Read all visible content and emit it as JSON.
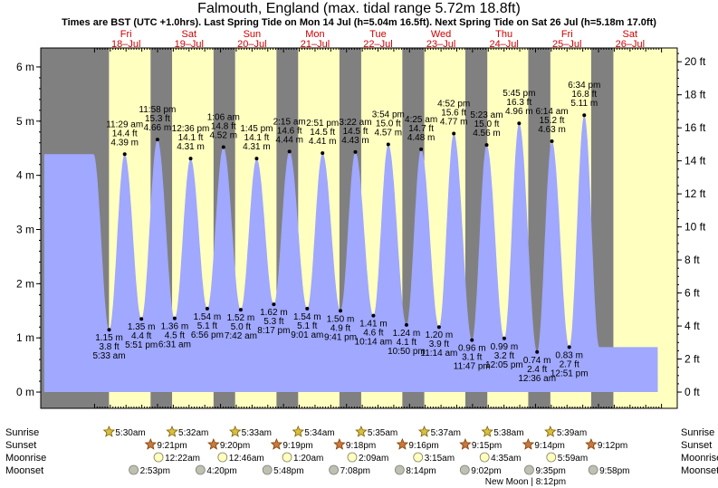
{
  "title": "Falmouth, England (max. tidal range 5.72m 18.8ft)",
  "subtitle": "Times are BST (UTC +1.0hrs). Last Spring Tide on Mon 14 Jul (h=5.04m 16.5ft). Next Spring Tide on Sat 26 Jul (h=5.18m 17.0ft)",
  "colors": {
    "day": "#ffffc0",
    "night": "#808080",
    "tide": "#a0a8ff",
    "day_label": "#d00000"
  },
  "chart_data": {
    "type": "area",
    "title": "Falmouth, England (max. tidal range 5.72m 18.8ft)",
    "xlabel": "",
    "ylabel_left": "m",
    "ylabel_right": "ft",
    "x_unit": "hours since 00:00 Fri 18 Jul",
    "ylim": [
      -0.3,
      6.35
    ],
    "y_ticks_m": [
      0,
      1,
      2,
      3,
      4,
      5,
      6
    ],
    "y_tick_labels_m": [
      "0 m",
      "1 m",
      "2 m",
      "3 m",
      "4 m",
      "5 m",
      "6 m"
    ],
    "y_ticks_ft": [
      0,
      2,
      4,
      6,
      8,
      10,
      12,
      14,
      16,
      18,
      20
    ],
    "y_tick_labels_ft": [
      "0 ft",
      "2 ft",
      "4 ft",
      "6 ft",
      "8 ft",
      "10 ft",
      "12 ft",
      "14 ft",
      "16 ft",
      "18 ft",
      "20 ft"
    ],
    "days": [
      {
        "dow": "Fri",
        "date": "18–Jul"
      },
      {
        "dow": "Sat",
        "date": "19–Jul"
      },
      {
        "dow": "Sun",
        "date": "20–Jul"
      },
      {
        "dow": "Mon",
        "date": "21–Jul"
      },
      {
        "dow": "Tue",
        "date": "22–Jul"
      },
      {
        "dow": "Wed",
        "date": "23–Jul"
      },
      {
        "dow": "Thu",
        "date": "24–Jul"
      },
      {
        "dow": "Fri",
        "date": "25–Jul"
      },
      {
        "dow": "Sat",
        "date": "26–Jul"
      }
    ],
    "daylight": [
      {
        "day": 0,
        "sunrise": "5:30am",
        "sunset": "9:21pm"
      },
      {
        "day": 1,
        "sunrise": "5:32am",
        "sunset": "9:20pm"
      },
      {
        "day": 2,
        "sunrise": "5:33am",
        "sunset": "9:19pm"
      },
      {
        "day": 3,
        "sunrise": "5:34am",
        "sunset": "9:18pm"
      },
      {
        "day": 4,
        "sunrise": "5:35am",
        "sunset": "9:16pm"
      },
      {
        "day": 5,
        "sunrise": "5:37am",
        "sunset": "9:15pm"
      },
      {
        "day": 6,
        "sunrise": "5:38am",
        "sunset": "9:14pm"
      },
      {
        "day": 7,
        "sunrise": "5:39am",
        "sunset": "9:12pm"
      },
      {
        "day": 8,
        "sunrise": "",
        "sunset": ""
      }
    ],
    "tides": [
      {
        "day": 0,
        "time": "5:33 am",
        "m": "1.15 m",
        "ft": "3.8 ft",
        "height": 1.15,
        "type": "low"
      },
      {
        "day": 0,
        "time": "11:29 am",
        "m": "4.39 m",
        "ft": "14.4 ft",
        "height": 4.39,
        "type": "high"
      },
      {
        "day": 0,
        "time": "5:51 pm",
        "m": "1.35 m",
        "ft": "4.4 ft",
        "height": 1.35,
        "type": "low"
      },
      {
        "day": 0,
        "time": "11:58 pm",
        "m": "4.66 m",
        "ft": "15.3 ft",
        "height": 4.66,
        "type": "high"
      },
      {
        "day": 1,
        "time": "6:31 am",
        "m": "1.36 m",
        "ft": "4.5 ft",
        "height": 1.36,
        "type": "low"
      },
      {
        "day": 1,
        "time": "12:36 pm",
        "m": "4.31 m",
        "ft": "14.1 ft",
        "height": 4.31,
        "type": "high"
      },
      {
        "day": 1,
        "time": "6:56 pm",
        "m": "1.54 m",
        "ft": "5.1 ft",
        "height": 1.54,
        "type": "low"
      },
      {
        "day": 2,
        "time": "1:06 am",
        "m": "4.52 m",
        "ft": "14.8 ft",
        "height": 4.52,
        "type": "high"
      },
      {
        "day": 2,
        "time": "7:42 am",
        "m": "1.52 m",
        "ft": "5.0 ft",
        "height": 1.52,
        "type": "low"
      },
      {
        "day": 2,
        "time": "1:45 pm",
        "m": "4.31 m",
        "ft": "14.1 ft",
        "height": 4.31,
        "type": "high"
      },
      {
        "day": 2,
        "time": "8:17 pm",
        "m": "1.62 m",
        "ft": "5.3 ft",
        "height": 1.62,
        "type": "low"
      },
      {
        "day": 3,
        "time": "2:15 am",
        "m": "4.44 m",
        "ft": "14.6 ft",
        "height": 4.44,
        "type": "high"
      },
      {
        "day": 3,
        "time": "9:01 am",
        "m": "1.54 m",
        "ft": "5.1 ft",
        "height": 1.54,
        "type": "low"
      },
      {
        "day": 3,
        "time": "2:51 pm",
        "m": "4.41 m",
        "ft": "14.5 ft",
        "height": 4.41,
        "type": "high"
      },
      {
        "day": 3,
        "time": "9:41 pm",
        "m": "1.50 m",
        "ft": "4.9 ft",
        "height": 1.5,
        "type": "low"
      },
      {
        "day": 4,
        "time": "3:22 am",
        "m": "4.43 m",
        "ft": "14.5 ft",
        "height": 4.43,
        "type": "high"
      },
      {
        "day": 4,
        "time": "10:14 am",
        "m": "1.41 m",
        "ft": "4.6 ft",
        "height": 1.41,
        "type": "low"
      },
      {
        "day": 4,
        "time": "3:54 pm",
        "m": "4.57 m",
        "ft": "15.0 ft",
        "height": 4.57,
        "type": "high"
      },
      {
        "day": 4,
        "time": "10:50 pm",
        "m": "1.24 m",
        "ft": "4.1 ft",
        "height": 1.24,
        "type": "low"
      },
      {
        "day": 5,
        "time": "4:25 am",
        "m": "4.48 m",
        "ft": "14.7 ft",
        "height": 4.48,
        "type": "high"
      },
      {
        "day": 5,
        "time": "11:14 am",
        "m": "1.20 m",
        "ft": "3.9 ft",
        "height": 1.2,
        "type": "low"
      },
      {
        "day": 5,
        "time": "4:52 pm",
        "m": "4.77 m",
        "ft": "15.6 ft",
        "height": 4.77,
        "type": "high"
      },
      {
        "day": 5,
        "time": "11:47 pm",
        "m": "0.96 m",
        "ft": "3.1 ft",
        "height": 0.96,
        "type": "low"
      },
      {
        "day": 6,
        "time": "5:23 am",
        "m": "4.56 m",
        "ft": "15.0 ft",
        "height": 4.56,
        "type": "high"
      },
      {
        "day": 6,
        "time": "12:05 pm",
        "m": "0.99 m",
        "ft": "3.2 ft",
        "height": 0.99,
        "type": "low"
      },
      {
        "day": 6,
        "time": "5:45 pm",
        "m": "4.96 m",
        "ft": "16.3 ft",
        "height": 4.96,
        "type": "high"
      },
      {
        "day": 7,
        "time": "12:36 am",
        "m": "0.74 m",
        "ft": "2.4 ft",
        "height": 0.74,
        "type": "low"
      },
      {
        "day": 7,
        "time": "6:14 am",
        "m": "4.63 m",
        "ft": "15.2 ft",
        "height": 4.63,
        "type": "high"
      },
      {
        "day": 7,
        "time": "12:51 pm",
        "m": "0.83 m",
        "ft": "2.7 ft",
        "height": 0.83,
        "type": "low"
      },
      {
        "day": 7,
        "time": "6:34 pm",
        "m": "5.11 m",
        "ft": "16.8 ft",
        "height": 5.11,
        "type": "high"
      }
    ],
    "moonrise": [
      {
        "day": 0,
        "time": "12:22am"
      },
      {
        "day": 1,
        "time": "12:46am"
      },
      {
        "day": 2,
        "time": "1:20am"
      },
      {
        "day": 3,
        "time": "2:09am"
      },
      {
        "day": 4,
        "time": "3:15am"
      },
      {
        "day": 5,
        "time": "4:35am"
      },
      {
        "day": 6,
        "time": "5:59am"
      }
    ],
    "moonset": [
      {
        "day": 0,
        "time": "2:53pm"
      },
      {
        "day": 1,
        "time": "4:20pm"
      },
      {
        "day": 2,
        "time": "5:48pm"
      },
      {
        "day": 3,
        "time": "7:08pm"
      },
      {
        "day": 4,
        "time": "8:14pm"
      },
      {
        "day": 5,
        "time": "9:02pm"
      },
      {
        "day": 6,
        "time": "9:35pm"
      },
      {
        "day": 7,
        "time": "9:58pm"
      }
    ],
    "moon_phase": {
      "label": "New Moon | 8:12pm",
      "day": 6
    }
  },
  "rows": {
    "sunrise": "Sunrise",
    "sunset": "Sunset",
    "moonrise": "Moonrise",
    "moonset": "Moonset"
  }
}
